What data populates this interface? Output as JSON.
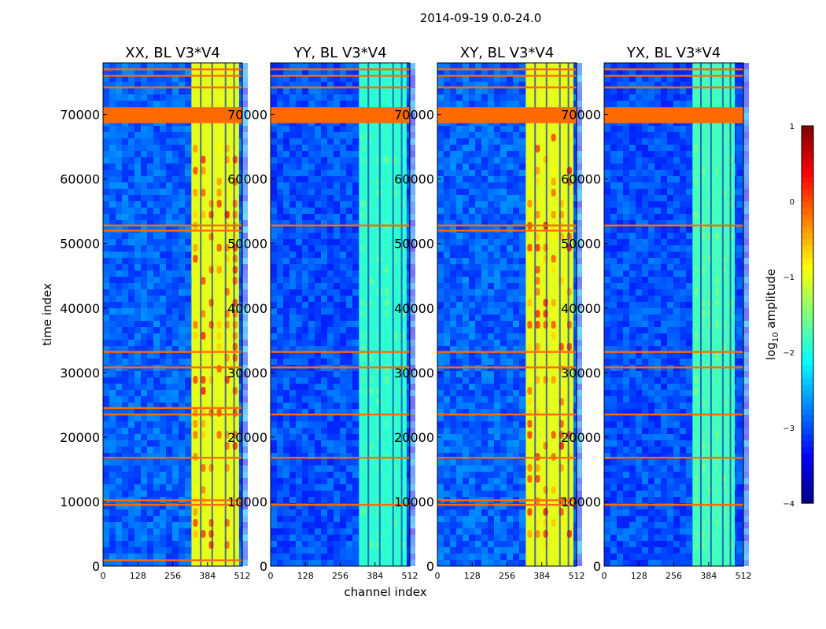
{
  "figure": {
    "suptitle": "2014-09-19 0.0-24.0",
    "xlabel": "channel index",
    "ylabel": "time index"
  },
  "colorbar": {
    "label_prefix": "log",
    "label_subscript": "10",
    "label_suffix": " amplitude",
    "range": [
      -4,
      1
    ],
    "ticks": [
      "1",
      "0",
      "−1",
      "−2",
      "−3",
      "−4"
    ],
    "colormap": "jet"
  },
  "chart_data": [
    {
      "type": "heatmap",
      "title": "XX, BL V3*V4",
      "xlim": [
        0,
        512
      ],
      "ylim": [
        0,
        78000
      ],
      "xticks": [
        "0",
        "128",
        "256",
        "384",
        "512"
      ],
      "yticks": [
        "0",
        "10000",
        "20000",
        "30000",
        "40000",
        "50000",
        "60000",
        "70000"
      ],
      "background_level": -2.9,
      "band_channels": [
        325,
        500
      ],
      "band_level": -1.0,
      "band_peak_level": 0.3,
      "flagged_rows": [
        900,
        9500,
        10200,
        16800,
        23500,
        24500,
        30800,
        33200,
        52000,
        52800,
        68800,
        70000,
        71000,
        74200,
        76000,
        77000
      ]
    },
    {
      "type": "heatmap",
      "title": "YY, BL V3*V4",
      "xlim": [
        0,
        512
      ],
      "ylim": [
        0,
        78000
      ],
      "xticks": [
        "0",
        "128",
        "256",
        "384",
        "512"
      ],
      "yticks": [
        "0",
        "10000",
        "20000",
        "30000",
        "40000",
        "50000",
        "60000",
        "70000"
      ],
      "background_level": -3.0,
      "band_channels": [
        325,
        500
      ],
      "band_level": -1.9,
      "band_peak_level": -1.6,
      "flagged_rows": [
        9500,
        16800,
        23500,
        30800,
        33200,
        52800,
        68800,
        70000,
        71000,
        74200,
        76000,
        77000
      ]
    },
    {
      "type": "heatmap",
      "title": "XY, BL V3*V4",
      "xlim": [
        0,
        512
      ],
      "ylim": [
        0,
        78000
      ],
      "xticks": [
        "0",
        "128",
        "256",
        "384",
        "512"
      ],
      "yticks": [
        "0",
        "10000",
        "20000",
        "30000",
        "40000",
        "50000",
        "60000",
        "70000"
      ],
      "background_level": -2.9,
      "band_channels": [
        325,
        500
      ],
      "band_level": -1.0,
      "band_peak_level": 0.3,
      "flagged_rows": [
        9500,
        10200,
        16800,
        23500,
        30800,
        33200,
        52000,
        52800,
        68800,
        70000,
        71000,
        74200,
        76000,
        77000
      ]
    },
    {
      "type": "heatmap",
      "title": "YX, BL V3*V4",
      "xlim": [
        0,
        512
      ],
      "ylim": [
        0,
        78000
      ],
      "xticks": [
        "0",
        "128",
        "256",
        "384",
        "512"
      ],
      "yticks": [
        "0",
        "10000",
        "20000",
        "30000",
        "40000",
        "50000",
        "60000",
        "70000"
      ],
      "background_level": -3.0,
      "band_channels": [
        325,
        480
      ],
      "band_level": -1.8,
      "band_peak_level": -1.5,
      "flagged_rows": [
        9500,
        16800,
        23500,
        30800,
        33200,
        52800,
        68800,
        70000,
        71000,
        74200,
        76000,
        77000
      ]
    }
  ]
}
